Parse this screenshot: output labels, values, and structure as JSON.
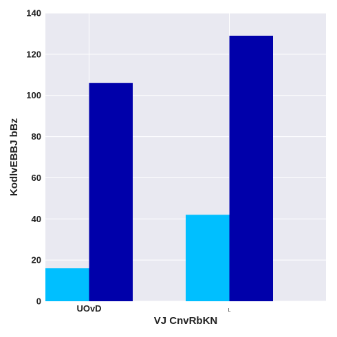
{
  "colors": {
    "plot_background": "#e9e9f1",
    "grid": "#ffffff",
    "series": [
      "#00bfff",
      "#0000aa"
    ]
  },
  "chart_data": {
    "type": "bar",
    "categories": [
      "UOvD",
      "L"
    ],
    "series": [
      {
        "values": [
          16,
          42
        ]
      },
      {
        "values": [
          106,
          129
        ]
      }
    ],
    "xlabel": "VJ CnvRbKN",
    "ylabel": "KodlvEBBJ bBz",
    "ylim": [
      0,
      140
    ],
    "yticks": [
      0,
      20,
      40,
      60,
      80,
      100,
      120,
      140
    ],
    "grid": true,
    "legend": "none"
  }
}
